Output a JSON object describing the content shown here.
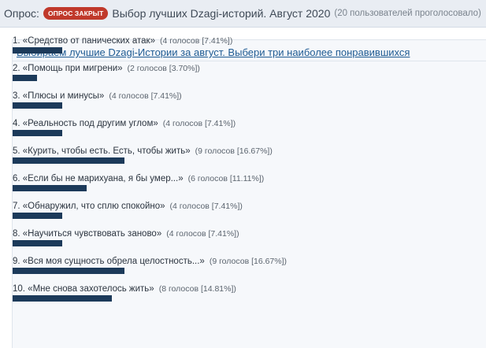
{
  "header": {
    "prefix": "Опрос:",
    "badge": "ОПРОС ЗАКРЫТ",
    "title": "Выбор лучших Dzagi-историй. Август 2020",
    "votes_summary": "(20 пользователей проголосовало)"
  },
  "poll": {
    "question": "Выбираем лучшие Dzagi-Истории за август. Выбери три наиболее понравившихся",
    "bar_color": "#1c3a5a",
    "options": [
      {
        "label": "1. «Средство от панических атак»",
        "stats": "(4 голосов [7.41%])",
        "percent": 7.41
      },
      {
        "label": "2. «Помощь при мигрени»",
        "stats": "(2 голосов [3.70%])",
        "percent": 3.7
      },
      {
        "label": "3. «Плюсы и минусы»",
        "stats": "(4 голосов [7.41%])",
        "percent": 7.41
      },
      {
        "label": "4. «Реальность под другим углом»",
        "stats": "(4 голосов [7.41%])",
        "percent": 7.41
      },
      {
        "label": "5. «Курить, чтобы есть. Есть, чтобы жить»",
        "stats": "(9 голосов [16.67%])",
        "percent": 16.67
      },
      {
        "label": "6. «Если бы не марихуана, я бы умер...»",
        "stats": "(6 голосов [11.11%])",
        "percent": 11.11
      },
      {
        "label": "7. «Обнаружил, что сплю спокойно»",
        "stats": "(4 голосов [7.41%])",
        "percent": 7.41
      },
      {
        "label": "8. «Научиться чувствовать заново»",
        "stats": "(4 голосов [7.41%])",
        "percent": 7.41
      },
      {
        "label": "9. «Вся моя сущность обрела целостность...»",
        "stats": "(9 голосов [16.67%])",
        "percent": 16.67
      },
      {
        "label": "10. «Мне снова захотелось жить»",
        "stats": "(8 голосов [14.81%])",
        "percent": 14.81
      }
    ]
  }
}
